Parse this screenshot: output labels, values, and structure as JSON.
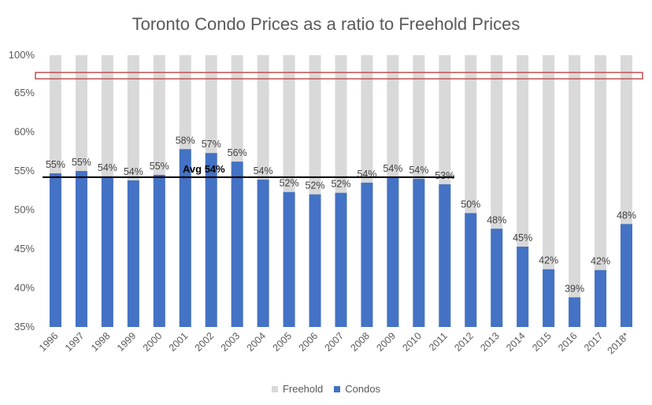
{
  "chart_data": {
    "type": "bar",
    "title": "Toronto Condo Prices as a ratio to Freehold Prices",
    "categories": [
      "1996",
      "1997",
      "1998",
      "1999",
      "2000",
      "2001",
      "2002",
      "2003",
      "2004",
      "2005",
      "2006",
      "2007",
      "2008",
      "2009",
      "2010",
      "2011",
      "2012",
      "2013",
      "2014",
      "2015",
      "2016",
      "2017",
      "2018*"
    ],
    "series": [
      {
        "name": "Freehold",
        "color": "#d9d9d9",
        "values": [
          100,
          100,
          100,
          100,
          100,
          100,
          100,
          100,
          100,
          100,
          100,
          100,
          100,
          100,
          100,
          100,
          100,
          100,
          100,
          100,
          100,
          100,
          100
        ]
      },
      {
        "name": "Condos",
        "color": "#4472c4",
        "values": [
          54.7,
          55,
          54.3,
          53.8,
          54.5,
          57.8,
          57.3,
          56.2,
          53.9,
          52.3,
          52,
          52.2,
          53.5,
          54.2,
          54,
          53.3,
          49.6,
          47.6,
          45.3,
          42.4,
          38.8,
          42.3,
          48.2
        ]
      }
    ],
    "data_labels": [
      "55%",
      "55%",
      "54%",
      "54%",
      "55%",
      "58%",
      "57%",
      "56%",
      "54%",
      "52%",
      "52%",
      "52%",
      "54%",
      "54%",
      "54%",
      "53%",
      "50%",
      "48%",
      "45%",
      "42%",
      "39%",
      "42%",
      "48%"
    ],
    "yticks": [
      "35%",
      "40%",
      "45%",
      "50%",
      "55%",
      "60%",
      "65%",
      "100%"
    ],
    "average": {
      "label": "Avg 54%",
      "value": 54.2,
      "color": "#000000"
    },
    "axis_break_color": "#c0504d",
    "grid": false,
    "legend_position": "bottom"
  }
}
